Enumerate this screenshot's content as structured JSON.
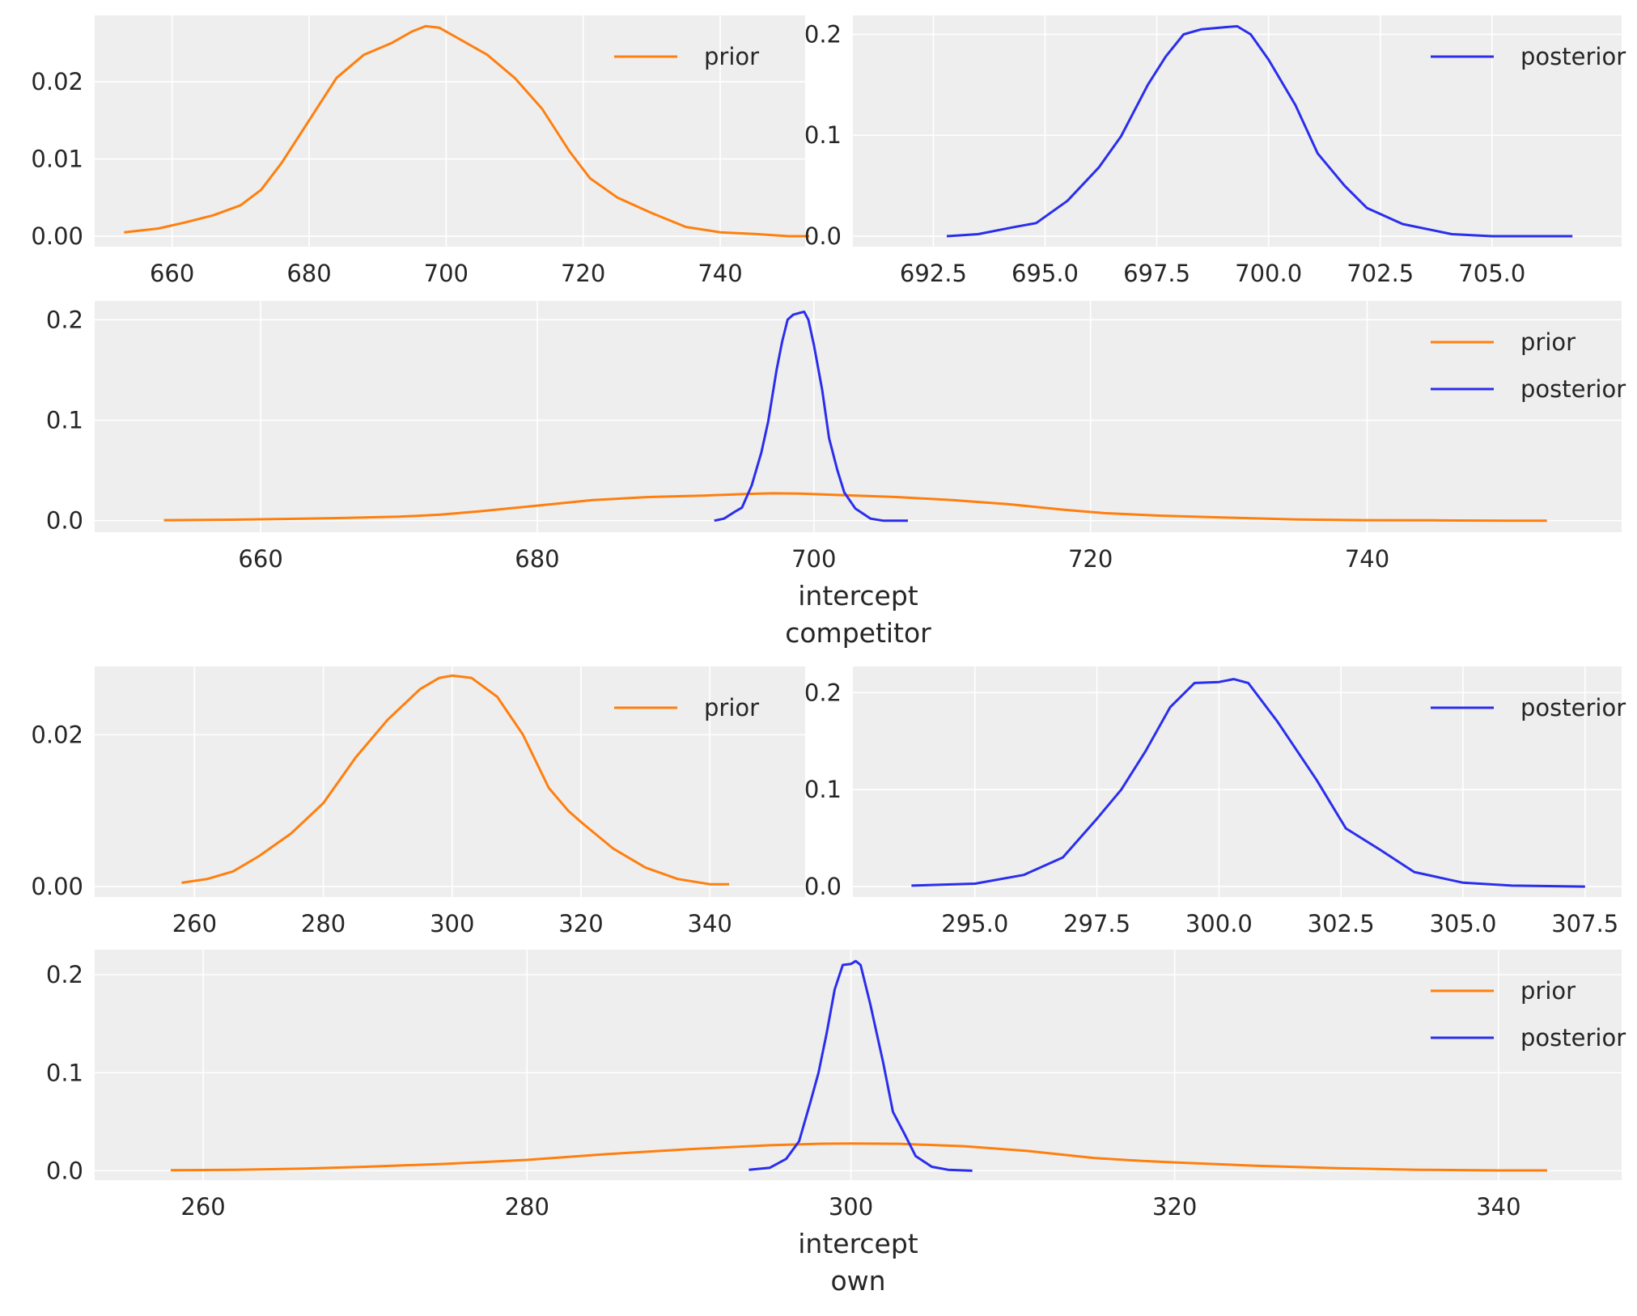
{
  "chart_data": [
    {
      "type": "line",
      "xlim": [
        648.7,
        752.4
      ],
      "ylim": [
        -0.00136,
        0.0286
      ],
      "xticks": [
        660,
        680,
        700,
        720,
        740
      ],
      "xticklabels": [
        "660",
        "680",
        "700",
        "720",
        "740"
      ],
      "yticks": [
        0,
        0.01,
        0.02
      ],
      "yticklabels": [
        "0.00",
        "0.01",
        "0.02"
      ],
      "grid": true,
      "legend": "top-right",
      "xlabel": [],
      "series": [
        {
          "name": "prior",
          "color": "#ff7f0e",
          "x": [
            653,
            658,
            662,
            666,
            670,
            673,
            676,
            680,
            684,
            688,
            692,
            695,
            697,
            699,
            702,
            706,
            710,
            714,
            718,
            721,
            725,
            730,
            735,
            740,
            745,
            750,
            753
          ],
          "y": [
            0.0005,
            0.001,
            0.0018,
            0.0027,
            0.004,
            0.006,
            0.0095,
            0.015,
            0.0205,
            0.0235,
            0.025,
            0.0265,
            0.0272,
            0.027,
            0.0255,
            0.0235,
            0.0205,
            0.0165,
            0.011,
            0.0075,
            0.005,
            0.003,
            0.0012,
            0.0005,
            0.0003,
            0.0,
            0.0
          ]
        }
      ]
    },
    {
      "type": "line",
      "xlim": [
        690.7,
        707.9
      ],
      "ylim": [
        -0.0104,
        0.2188
      ],
      "xticks": [
        692.5,
        695,
        697.5,
        700,
        702.5,
        705
      ],
      "xticklabels": [
        "692.5",
        "695.0",
        "697.5",
        "700.0",
        "702.5",
        "705.0"
      ],
      "yticks": [
        0,
        0.1,
        0.2
      ],
      "yticklabels": [
        "0.0",
        "0.1",
        "0.2"
      ],
      "grid": true,
      "legend": "top-right",
      "xlabel": [],
      "series": [
        {
          "name": "posterior",
          "color": "#2a2eec",
          "x": [
            692.8,
            693.5,
            694.3,
            694.8,
            695.5,
            696.2,
            696.7,
            697.3,
            697.7,
            698.1,
            698.5,
            699.0,
            699.3,
            699.6,
            700.0,
            700.6,
            701.1,
            701.7,
            702.2,
            703.0,
            704.1,
            705.0,
            706.8
          ],
          "y": [
            0,
            0.002,
            0.009,
            0.013,
            0.035,
            0.068,
            0.099,
            0.15,
            0.178,
            0.2,
            0.205,
            0.207,
            0.208,
            0.2,
            0.175,
            0.13,
            0.082,
            0.05,
            0.028,
            0.012,
            0.002,
            0,
            0
          ]
        }
      ]
    },
    {
      "type": "line",
      "xlim": [
        648.0,
        758.4
      ],
      "ylim": [
        -0.0115,
        0.2188
      ],
      "xticks": [
        660,
        680,
        700,
        720,
        740
      ],
      "xticklabels": [
        "660",
        "680",
        "700",
        "720",
        "740"
      ],
      "yticks": [
        0,
        0.1,
        0.2
      ],
      "yticklabels": [
        "0.0",
        "0.1",
        "0.2"
      ],
      "grid": true,
      "legend": "top-right",
      "xlabel": [
        "intercept",
        "competitor"
      ],
      "series": [
        {
          "name": "prior",
          "color": "#ff7f0e",
          "x": [
            653,
            658,
            662,
            666,
            670,
            673,
            676,
            680,
            684,
            688,
            692,
            695,
            697,
            699,
            702,
            706,
            710,
            714,
            718,
            721,
            725,
            730,
            735,
            740,
            745,
            750,
            753
          ],
          "y": [
            0.0005,
            0.001,
            0.0018,
            0.0027,
            0.004,
            0.006,
            0.0095,
            0.015,
            0.0205,
            0.0235,
            0.025,
            0.0265,
            0.0272,
            0.027,
            0.0255,
            0.0235,
            0.0205,
            0.0165,
            0.011,
            0.0075,
            0.005,
            0.003,
            0.0012,
            0.0005,
            0.0003,
            0.0,
            0.0
          ]
        },
        {
          "name": "posterior",
          "color": "#2a2eec",
          "x": [
            692.8,
            693.5,
            694.3,
            694.8,
            695.5,
            696.2,
            696.7,
            697.3,
            697.7,
            698.1,
            698.5,
            699.0,
            699.3,
            699.6,
            700.0,
            700.6,
            701.1,
            701.7,
            702.2,
            703.0,
            704.1,
            705.0,
            706.8
          ],
          "y": [
            0,
            0.002,
            0.009,
            0.013,
            0.035,
            0.068,
            0.099,
            0.15,
            0.178,
            0.2,
            0.205,
            0.207,
            0.208,
            0.2,
            0.175,
            0.13,
            0.082,
            0.05,
            0.028,
            0.012,
            0.002,
            0,
            0
          ]
        }
      ]
    },
    {
      "type": "line",
      "xlim": [
        244.5,
        354.8
      ],
      "ylim": [
        -0.00138,
        0.029
      ],
      "xticks": [
        260,
        280,
        300,
        320,
        340
      ],
      "xticklabels": [
        "260",
        "280",
        "300",
        "320",
        "340"
      ],
      "yticks": [
        0,
        0.02
      ],
      "yticklabels": [
        "0.00",
        "0.02"
      ],
      "grid": true,
      "legend": "top-right",
      "xlabel": [],
      "series": [
        {
          "name": "prior",
          "color": "#ff7f0e",
          "x": [
            258,
            262,
            266,
            270,
            275,
            280,
            285,
            290,
            295,
            298,
            300,
            303,
            307,
            311,
            315,
            318,
            320,
            325,
            330,
            335,
            340,
            343
          ],
          "y": [
            0.0005,
            0.001,
            0.002,
            0.004,
            0.007,
            0.011,
            0.017,
            0.022,
            0.026,
            0.0275,
            0.0278,
            0.0275,
            0.025,
            0.02,
            0.013,
            0.01,
            0.0085,
            0.005,
            0.0025,
            0.001,
            0.0003,
            0.0003
          ]
        }
      ]
    },
    {
      "type": "line",
      "xlim": [
        292.5,
        308.25
      ],
      "ylim": [
        -0.0108,
        0.227
      ],
      "xticks": [
        295,
        297.5,
        300,
        302.5,
        305,
        307.5
      ],
      "xticklabels": [
        "295.0",
        "297.5",
        "300.0",
        "302.5",
        "305.0",
        "307.5"
      ],
      "yticks": [
        0,
        0.1,
        0.2
      ],
      "yticklabels": [
        "0.0",
        "0.1",
        "0.2"
      ],
      "grid": true,
      "legend": "top-right",
      "xlabel": [],
      "series": [
        {
          "name": "posterior",
          "color": "#2a2eec",
          "x": [
            293.7,
            295,
            296,
            296.8,
            297.5,
            298,
            298.5,
            299,
            299.5,
            300,
            300.3,
            300.6,
            301.2,
            302,
            302.6,
            303.3,
            304,
            305,
            306,
            307.5
          ],
          "y": [
            0.001,
            0.003,
            0.012,
            0.03,
            0.07,
            0.1,
            0.14,
            0.185,
            0.21,
            0.211,
            0.214,
            0.21,
            0.17,
            0.11,
            0.06,
            0.038,
            0.015,
            0.004,
            0.001,
            0
          ]
        }
      ]
    },
    {
      "type": "line",
      "xlim": [
        253.3,
        347.6
      ],
      "ylim": [
        -0.0096,
        0.2257
      ],
      "xticks": [
        260,
        280,
        300,
        320,
        340
      ],
      "xticklabels": [
        "260",
        "280",
        "300",
        "320",
        "340"
      ],
      "yticks": [
        0,
        0.1,
        0.2
      ],
      "yticklabels": [
        "0.0",
        "0.1",
        "0.2"
      ],
      "grid": true,
      "legend": "top-right",
      "xlabel": [
        "intercept",
        "own"
      ],
      "series": [
        {
          "name": "prior",
          "color": "#ff7f0e",
          "x": [
            258,
            262,
            266,
            270,
            275,
            280,
            285,
            290,
            295,
            298,
            300,
            303,
            307,
            311,
            315,
            318,
            320,
            325,
            330,
            335,
            340,
            343
          ],
          "y": [
            0.0005,
            0.001,
            0.002,
            0.004,
            0.007,
            0.011,
            0.017,
            0.022,
            0.026,
            0.0275,
            0.0278,
            0.0275,
            0.025,
            0.02,
            0.013,
            0.01,
            0.0085,
            0.005,
            0.0025,
            0.001,
            0.0003,
            0.0003
          ]
        },
        {
          "name": "posterior",
          "color": "#2a2eec",
          "x": [
            293.7,
            295,
            296,
            296.8,
            297.5,
            298,
            298.5,
            299,
            299.5,
            300,
            300.3,
            300.6,
            301.2,
            302,
            302.6,
            303.3,
            304,
            305,
            306,
            307.5
          ],
          "y": [
            0.001,
            0.003,
            0.012,
            0.03,
            0.07,
            0.1,
            0.14,
            0.185,
            0.21,
            0.211,
            0.214,
            0.21,
            0.17,
            0.11,
            0.06,
            0.038,
            0.015,
            0.004,
            0.001,
            0
          ]
        }
      ]
    }
  ],
  "colors": {
    "axes_background": "#eeeeee",
    "grid": "#ffffff",
    "prior": "#ff7f0e",
    "posterior": "#2a2eec"
  }
}
